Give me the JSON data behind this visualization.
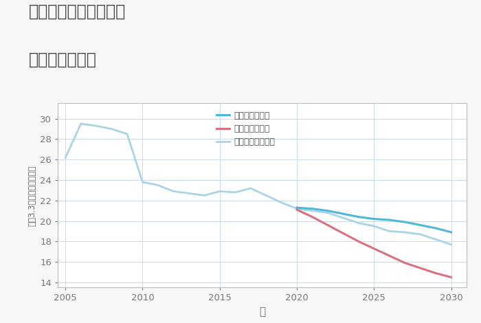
{
  "title_line1": "千葉県館山市西川名の",
  "title_line2": "土地の価格推移",
  "xlabel": "年",
  "ylabel": "坪（3.3㎡）単価（万円）",
  "background_color": "#f7f7f7",
  "plot_background_color": "#ffffff",
  "grid_color": "#ccdce8",
  "xlim": [
    2004.5,
    2031
  ],
  "ylim": [
    13.5,
    31.5
  ],
  "yticks": [
    14,
    16,
    18,
    20,
    22,
    24,
    26,
    28,
    30
  ],
  "xticks": [
    2005,
    2010,
    2015,
    2020,
    2025,
    2030
  ],
  "good_scenario": {
    "x": [
      2020,
      2021,
      2022,
      2023,
      2024,
      2025,
      2026,
      2027,
      2028,
      2029,
      2030
    ],
    "y": [
      21.3,
      21.2,
      21.0,
      20.7,
      20.4,
      20.2,
      20.1,
      19.9,
      19.6,
      19.3,
      18.9
    ],
    "color": "#4db8d8",
    "label": "グッドシナリオ",
    "linewidth": 2.2,
    "zorder": 4
  },
  "bad_scenario": {
    "x": [
      2020,
      2021,
      2022,
      2023,
      2024,
      2025,
      2026,
      2027,
      2028,
      2029,
      2030
    ],
    "y": [
      21.1,
      20.4,
      19.6,
      18.8,
      18.0,
      17.3,
      16.6,
      15.9,
      15.4,
      14.9,
      14.5
    ],
    "color": "#d9717f",
    "label": "バッドシナリオ",
    "linewidth": 2.2,
    "zorder": 4
  },
  "normal_scenario": {
    "x": [
      2005,
      2006,
      2007,
      2008,
      2009,
      2010,
      2011,
      2012,
      2013,
      2014,
      2015,
      2016,
      2017,
      2018,
      2019,
      2020,
      2021,
      2022,
      2023,
      2024,
      2025,
      2026,
      2027,
      2028,
      2029,
      2030
    ],
    "y": [
      26.2,
      29.5,
      29.3,
      29.0,
      28.5,
      23.8,
      23.5,
      22.9,
      22.7,
      22.5,
      22.9,
      22.8,
      23.2,
      22.5,
      21.8,
      21.2,
      21.0,
      20.8,
      20.3,
      19.8,
      19.5,
      19.0,
      18.9,
      18.7,
      18.2,
      17.7
    ],
    "color": "#a8d4e6",
    "label": "ノーマルシナリオ",
    "linewidth": 2.0,
    "zorder": 2
  }
}
